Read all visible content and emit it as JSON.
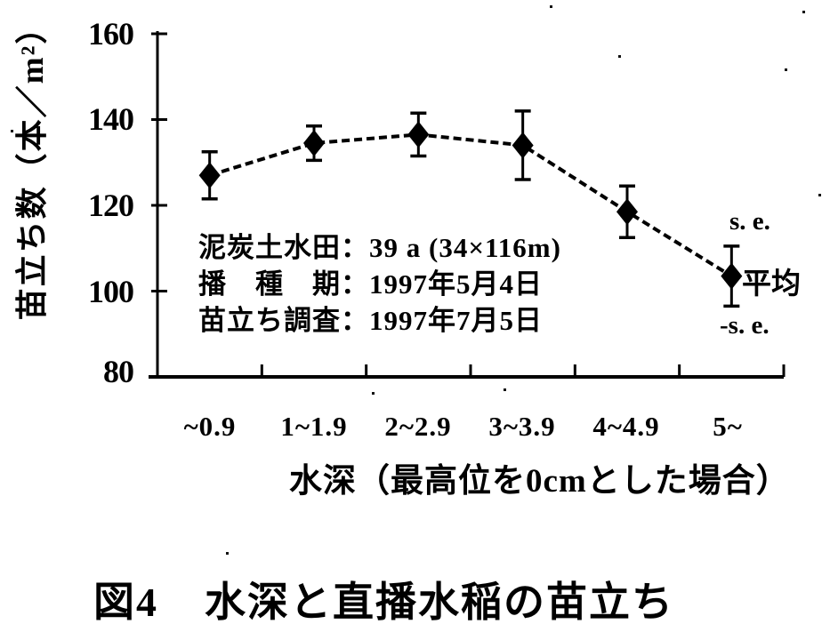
{
  "page": {
    "background": "#ffffff",
    "ink": "#000000"
  },
  "figure": {
    "caption_label": "図4",
    "caption_title": "水深と直播水稲の苗立ち"
  },
  "chart_data": {
    "type": "line",
    "title": "",
    "xlabel": "水深（最高位を0cmとした場合）",
    "ylabel": "苗立ち数（本／m²）",
    "categories": [
      "~0.9",
      "1~1.9",
      "2~2.9",
      "3~3.9",
      "4~4.9",
      "5~"
    ],
    "series": [
      {
        "name": "平均",
        "values": [
          127,
          134.5,
          136.5,
          134,
          118.5,
          103.5
        ],
        "se": [
          5.5,
          4,
          5,
          8,
          6,
          7
        ]
      }
    ],
    "ylim": [
      80,
      160
    ],
    "y_ticks": [
      160,
      140,
      120,
      100,
      80
    ],
    "grid": false,
    "marker": "diamond",
    "line_style": "dashed",
    "error_bars": true,
    "legend": {
      "position": "right-of-last-point",
      "entries": [
        "s. e.",
        "平均",
        "-s. e."
      ]
    },
    "annotation_lines": [
      "泥炭土水田：39 a (34×116m)",
      "播　種　期：1997年5月4日",
      "苗立ち調査：1997年7月5日"
    ]
  }
}
